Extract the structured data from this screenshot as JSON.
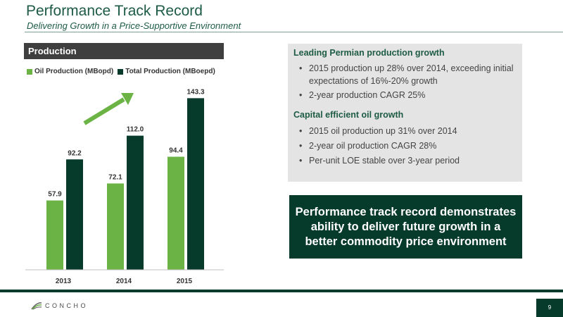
{
  "header": {
    "title": "Performance Track Record",
    "subtitle": "Delivering Growth in a Price-Supportive Environment"
  },
  "production_panel": {
    "label": "Production"
  },
  "chart_data": {
    "type": "bar",
    "categories": [
      "2013",
      "2014",
      "2015"
    ],
    "series": [
      {
        "name": "Oil Production (MBopd)",
        "values": [
          57.9,
          72.1,
          94.4
        ],
        "color": "#6ab344"
      },
      {
        "name": "Total Production (MBoepd)",
        "values": [
          92.2,
          112.0,
          143.3
        ],
        "color": "#063a2a"
      }
    ],
    "data_labels": [
      [
        "57.9",
        "72.1",
        "94.4"
      ],
      [
        "92.2",
        "112.0",
        "143.3"
      ]
    ],
    "legend_position": "top-left",
    "grid": false,
    "annotation": "growth-arrow",
    "arrow_color": "#6ab344"
  },
  "info": {
    "heading1": "Leading Permian production growth",
    "bullets1": [
      "2015 production up 28% over 2014, exceeding initial expectations of 16%-20% growth",
      "2-year production CAGR 25%"
    ],
    "heading2": "Capital efficient oil growth",
    "bullets2": [
      "2015 oil production up 31% over 2014",
      "2-year oil production CAGR 28%",
      "Per-unit LOE stable over 3-year period"
    ],
    "bullet_char": "•"
  },
  "callout": {
    "text": "Performance track record demonstrates ability to deliver future growth in a better commodity price environment"
  },
  "footer": {
    "logo_text": "CONCHO",
    "page_number": "9"
  },
  "colors": {
    "brand_dark": "#063a2a",
    "brand_green": "#6ab344",
    "title_green": "#1d5b44"
  }
}
